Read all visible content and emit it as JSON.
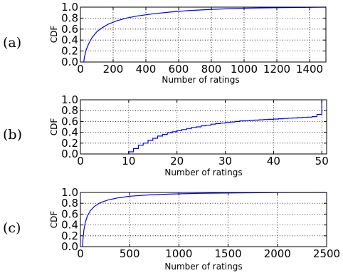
{
  "chart_data": [
    {
      "type": "line",
      "panel_label": "(a)",
      "xlabel": "Number of ratings",
      "ylabel": "CDF",
      "xlim": [
        0,
        1500
      ],
      "ylim": [
        0.0,
        1.0
      ],
      "xticks": [
        0,
        200,
        400,
        600,
        800,
        1000,
        1200,
        1400
      ],
      "xtick_labels": [
        "0",
        "200",
        "400",
        "600",
        "800",
        "1000",
        "1200",
        "1400"
      ],
      "yticks": [
        0.0,
        0.2,
        0.4,
        0.6,
        0.8,
        1.0
      ],
      "ytick_labels": [
        "0.0",
        "0.2",
        "0.4",
        "0.6",
        "0.8",
        "1.0"
      ],
      "grid": true,
      "color": "#0000ff",
      "series": [
        {
          "x": [
            20,
            25,
            35,
            50,
            70,
            100,
            130,
            170,
            220,
            280,
            350,
            450,
            550,
            650,
            800,
            1000,
            1200,
            1500
          ],
          "y": [
            0.0,
            0.1,
            0.22,
            0.33,
            0.44,
            0.55,
            0.62,
            0.69,
            0.75,
            0.8,
            0.84,
            0.88,
            0.91,
            0.935,
            0.96,
            0.98,
            0.99,
            1.0
          ]
        }
      ]
    },
    {
      "type": "line",
      "panel_label": "(b)",
      "xlabel": "Number of ratings",
      "ylabel": "CDF",
      "xlim": [
        0,
        51
      ],
      "ylim": [
        0.0,
        1.0
      ],
      "xticks": [
        0,
        10,
        20,
        30,
        40,
        50
      ],
      "xtick_labels": [
        "0",
        "10",
        "20",
        "30",
        "40",
        "50"
      ],
      "yticks": [
        0.0,
        0.2,
        0.4,
        0.6,
        0.8,
        1.0
      ],
      "ytick_labels": [
        "0.0",
        "0.2",
        "0.4",
        "0.6",
        "0.8",
        "1.0"
      ],
      "grid": true,
      "color": "#0000ff",
      "step": true,
      "series": [
        {
          "x": [
            10,
            11,
            12,
            13,
            14,
            15,
            16,
            17,
            18,
            19,
            20,
            21,
            22,
            23,
            24,
            25,
            26,
            27,
            28,
            29,
            30,
            31,
            32,
            33,
            34,
            35,
            36,
            37,
            38,
            39,
            40,
            41,
            42,
            43,
            44,
            45,
            46,
            47,
            48,
            49,
            50,
            50
          ],
          "y": [
            0.04,
            0.1,
            0.16,
            0.2,
            0.25,
            0.29,
            0.33,
            0.36,
            0.39,
            0.41,
            0.43,
            0.45,
            0.47,
            0.49,
            0.5,
            0.52,
            0.53,
            0.55,
            0.56,
            0.57,
            0.58,
            0.59,
            0.6,
            0.61,
            0.615,
            0.62,
            0.625,
            0.63,
            0.635,
            0.64,
            0.645,
            0.65,
            0.655,
            0.66,
            0.665,
            0.67,
            0.675,
            0.68,
            0.69,
            0.73,
            0.8,
            1.0
          ]
        }
      ]
    },
    {
      "type": "line",
      "panel_label": "(c)",
      "xlabel": "Number of ratings",
      "ylabel": "CDF",
      "xlim": [
        0,
        2500
      ],
      "ylim": [
        0.0,
        1.0
      ],
      "xticks": [
        0,
        500,
        1000,
        1500,
        2000,
        2500
      ],
      "xtick_labels": [
        "0",
        "500",
        "1000",
        "1500",
        "2000",
        "2500"
      ],
      "yticks": [
        0.0,
        0.2,
        0.4,
        0.6,
        0.8,
        1.0
      ],
      "ytick_labels": [
        "0.0",
        "0.2",
        "0.4",
        "0.6",
        "0.8",
        "1.0"
      ],
      "grid": true,
      "color": "#0000ff",
      "series": [
        {
          "x": [
            20,
            25,
            35,
            50,
            70,
            100,
            140,
            200,
            280,
            380,
            500,
            700,
            900,
            1200,
            1600,
            2000,
            2500
          ],
          "y": [
            0.0,
            0.12,
            0.3,
            0.45,
            0.56,
            0.66,
            0.74,
            0.81,
            0.86,
            0.9,
            0.93,
            0.955,
            0.97,
            0.983,
            0.992,
            0.997,
            1.0
          ]
        }
      ]
    }
  ]
}
